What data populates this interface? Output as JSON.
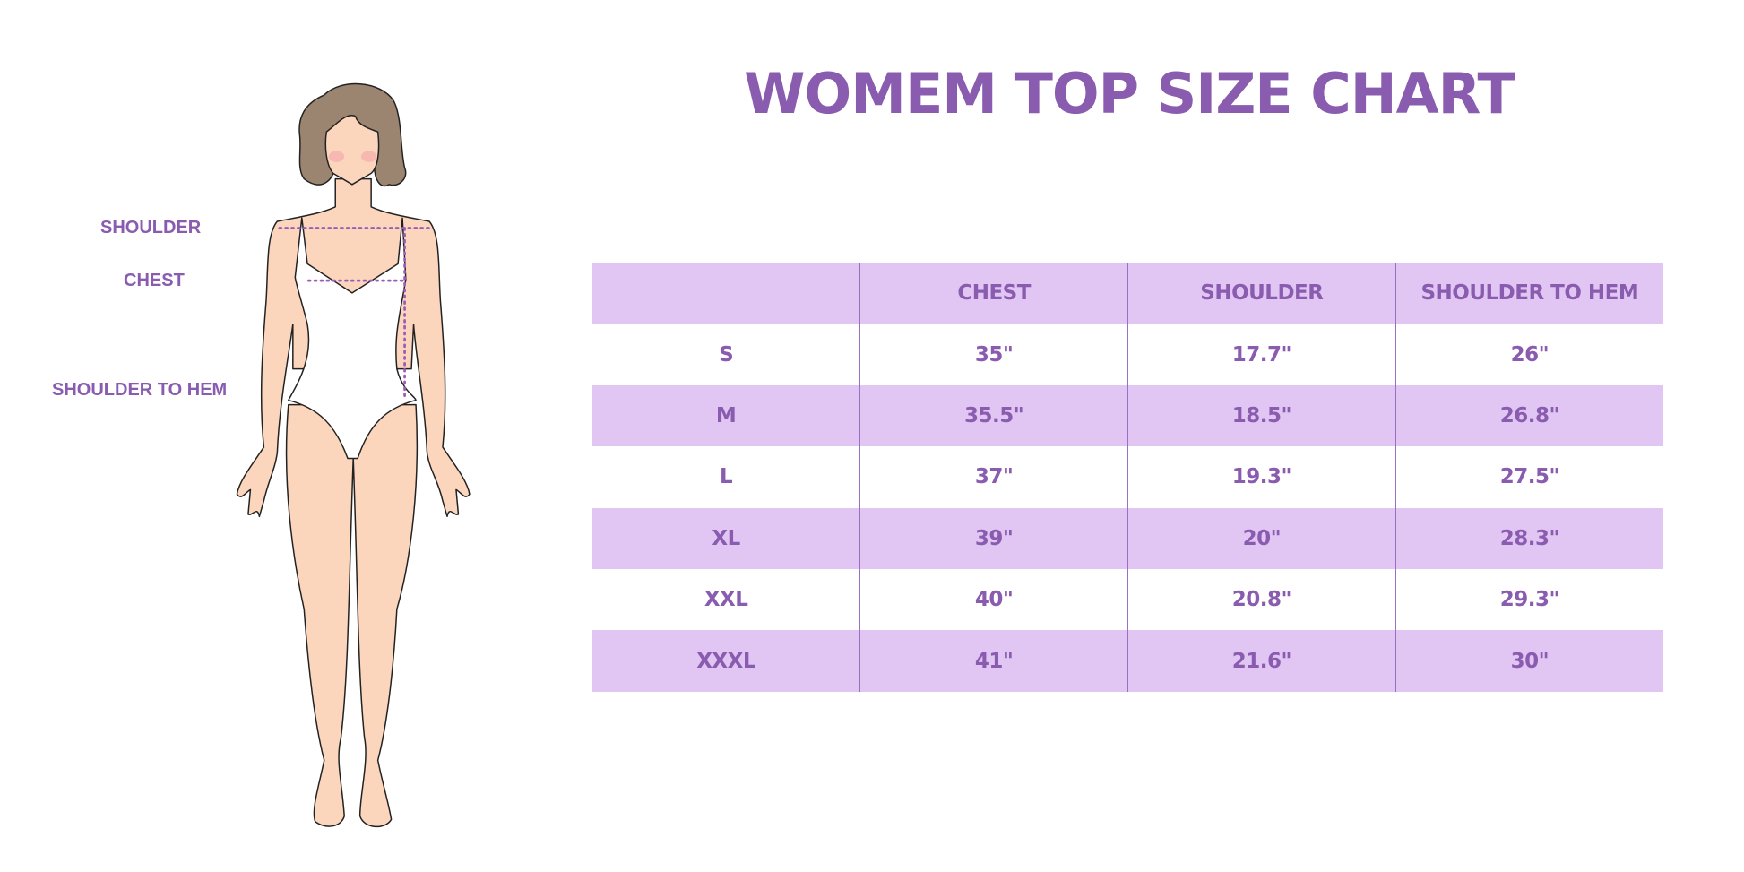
{
  "title": "WOMEM TOP SIZE CHART",
  "measure_labels": {
    "shoulder": "SHOULDER",
    "chest": "CHEST",
    "shoulder_to_hem": "SHOULDER TO HEM"
  },
  "colors": {
    "accent": "#8a5cb0",
    "stripe": "#e1c6f4",
    "skin": "#fcd5bd",
    "hair": "#9b8470"
  },
  "table": {
    "headers": [
      "",
      "CHEST",
      "SHOULDER",
      "SHOULDER TO HEM"
    ],
    "rows": [
      [
        "S",
        "35\"",
        "17.7\"",
        "26\""
      ],
      [
        "M",
        "35.5\"",
        "18.5\"",
        "26.8\""
      ],
      [
        "L",
        "37\"",
        "19.3\"",
        "27.5\""
      ],
      [
        "XL",
        "39\"",
        "20\"",
        "28.3\""
      ],
      [
        "XXL",
        "40\"",
        "20.8\"",
        "29.3\""
      ],
      [
        "XXXL",
        "41\"",
        "21.6\"",
        "30\""
      ]
    ]
  }
}
